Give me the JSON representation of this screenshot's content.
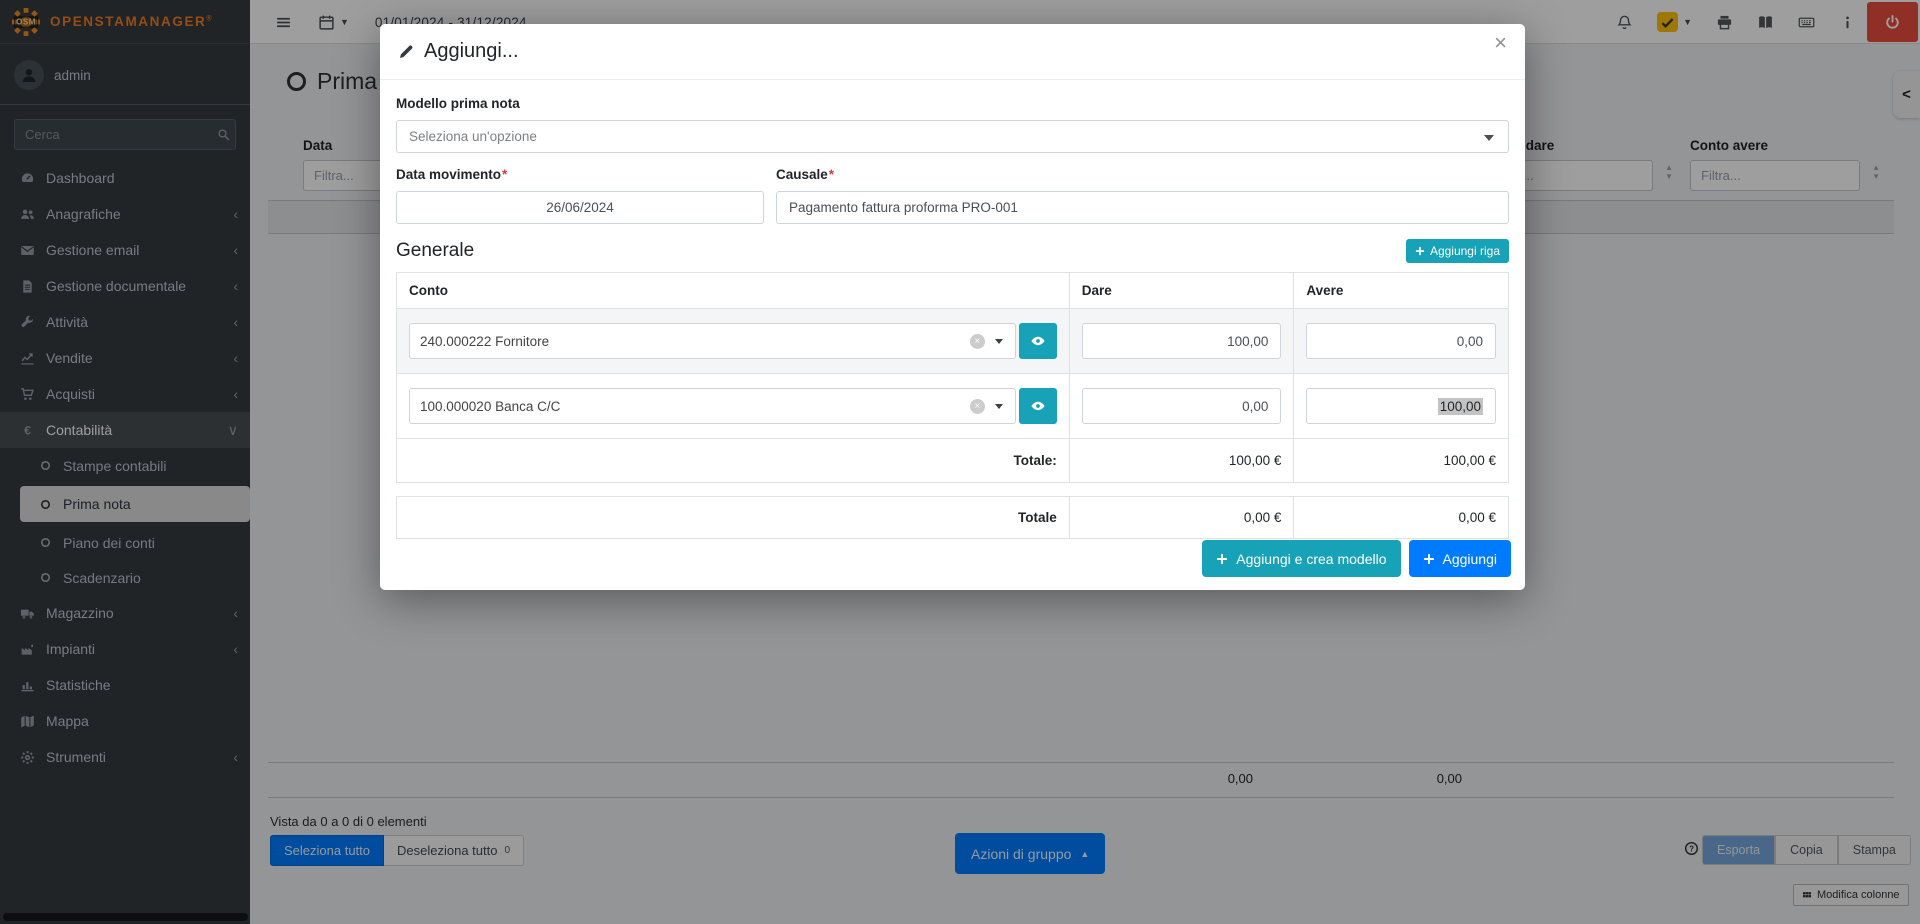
{
  "colors": {
    "teal": "#17a2b8",
    "blue": "#007bff",
    "red": "#e74c3c",
    "yellow": "#ffc107",
    "sidebar": "#343a40",
    "brand_orange": "#ef7d20"
  },
  "brand": {
    "name": "OpenSTAManager",
    "logo_text": "OSM",
    "reg": "®"
  },
  "topbar": {
    "date_range": "01/01/2024 - 31/12/2024"
  },
  "user": {
    "name": "admin"
  },
  "sidebar": {
    "search_placeholder": "Cerca",
    "items": [
      {
        "label": "Dashboard",
        "icon": "gauge"
      },
      {
        "label": "Anagrafiche",
        "icon": "users",
        "chevron": "left"
      },
      {
        "label": "Gestione email",
        "icon": "envelope",
        "chevron": "left"
      },
      {
        "label": "Gestione documentale",
        "icon": "file",
        "chevron": "left"
      },
      {
        "label": "Attività",
        "icon": "wrench",
        "chevron": "left"
      },
      {
        "label": "Vendite",
        "icon": "chart",
        "chevron": "left"
      },
      {
        "label": "Acquisti",
        "icon": "cart",
        "chevron": "left"
      },
      {
        "label": "Contabilità",
        "icon": "euro",
        "chevron": "down",
        "active": true,
        "sub": [
          {
            "label": "Stampe contabili"
          },
          {
            "label": "Prima nota",
            "active": true
          },
          {
            "label": "Piano dei conti"
          },
          {
            "label": "Scadenzario"
          }
        ]
      },
      {
        "label": "Magazzino",
        "icon": "truck",
        "chevron": "left"
      },
      {
        "label": "Impianti",
        "icon": "plant",
        "chevron": "left"
      },
      {
        "label": "Statistiche",
        "icon": "bars"
      },
      {
        "label": "Mappa",
        "icon": "map"
      },
      {
        "label": "Strumenti",
        "icon": "gear",
        "chevron": "left"
      }
    ]
  },
  "page": {
    "title": "Prima nota"
  },
  "filters": {
    "data": {
      "label": "Data",
      "placeholder": "Filtra..."
    },
    "conto_dare": {
      "label": "Conto dare",
      "placeholder": "Filtra..."
    },
    "conto_avere": {
      "label": "Conto avere",
      "placeholder": "Filtra..."
    }
  },
  "bg_totals": {
    "dare": "0,00",
    "avere": "0,00"
  },
  "list_footer": {
    "info": "Vista da 0 a 0 di 0 elementi",
    "select_all": "Seleziona tutto",
    "deselect_all": "Deseleziona tutto",
    "deselect_count": "0",
    "group_actions": "Azioni di gruppo",
    "export": "Esporta",
    "copy": "Copia",
    "print": "Stampa",
    "edit_columns": "Modifica colonne"
  },
  "modal": {
    "title": "Aggiungi...",
    "close_symbol": "×",
    "model_label": "Modello prima nota",
    "model_placeholder": "Seleziona un'opzione",
    "date_label": "Data movimento",
    "date_value": "26/06/2024",
    "causale_label": "Causale",
    "causale_value": "Pagamento fattura proforma PRO-001",
    "section_title": "Generale",
    "add_row_label": "Aggiungi riga",
    "columns": [
      "Conto",
      "Dare",
      "Avere"
    ],
    "rows": [
      {
        "conto": "240.000222 Fornitore",
        "dare": "100,00",
        "avere": "0,00"
      },
      {
        "conto": "100.000020 Banca C/C",
        "dare": "0,00",
        "avere": "100,00"
      }
    ],
    "totals": {
      "label": "Totale:",
      "dare": "100,00 €",
      "avere": "100,00 €"
    },
    "totals2": {
      "label": "Totale",
      "dare": "0,00 €",
      "avere": "0,00 €"
    },
    "submit_with_model_label": "Aggiungi e crea modello",
    "submit_label": "Aggiungi"
  }
}
